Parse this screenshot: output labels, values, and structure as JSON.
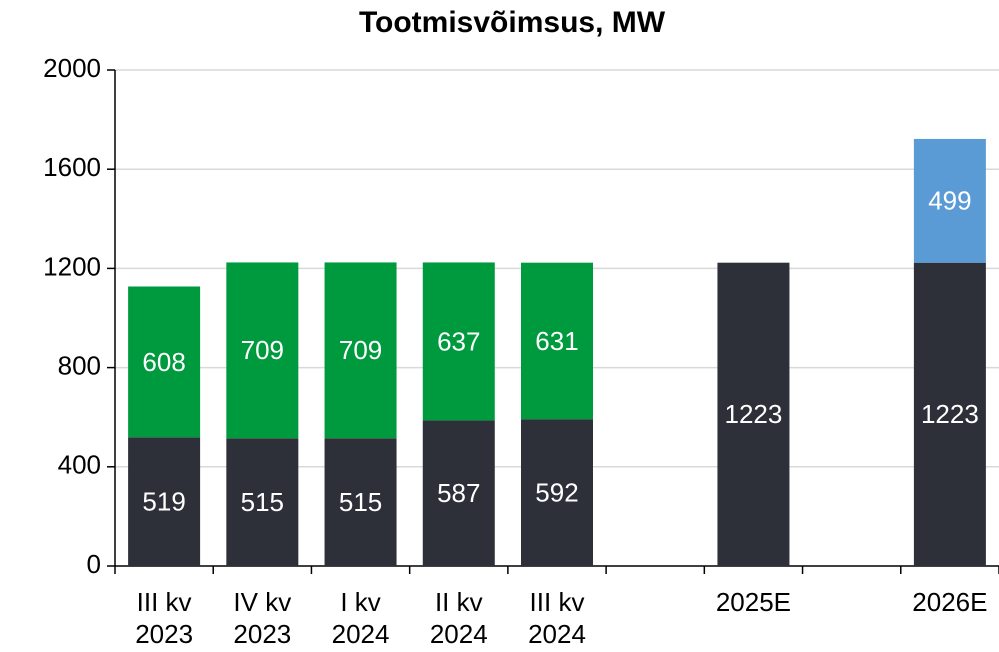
{
  "chart_data": {
    "type": "stacked_bar",
    "title": "Tootmisvõimsus, MW",
    "categories": [
      [
        "III kv",
        "2023"
      ],
      [
        "IV kv",
        "2023"
      ],
      [
        "I kv",
        "2024"
      ],
      [
        "II kv",
        "2024"
      ],
      [
        "III kv",
        "2024"
      ],
      null,
      [
        "2025E"
      ],
      null,
      [
        "2026E"
      ]
    ],
    "series": [
      {
        "color": "#2e3039",
        "values": [
          519,
          515,
          515,
          587,
          592,
          null,
          1223,
          null,
          1223
        ]
      },
      {
        "color": "#009a3e",
        "values": [
          608,
          709,
          709,
          637,
          631,
          null,
          null,
          null,
          null
        ]
      },
      {
        "color": "#5b9bd5",
        "values": [
          null,
          null,
          null,
          null,
          null,
          null,
          null,
          null,
          499
        ]
      }
    ],
    "ylim": [
      0,
      2000
    ],
    "yticks": [
      0,
      400,
      800,
      1200,
      1600,
      2000
    ],
    "grid": true
  }
}
